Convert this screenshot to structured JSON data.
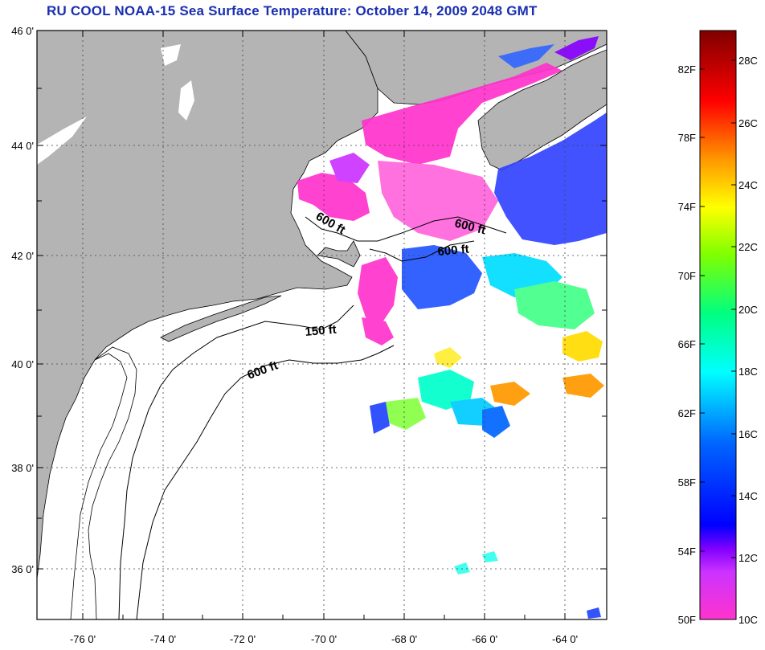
{
  "title": "RU COOL  NOAA-15  Sea Surface Temperature:  October 14, 2009 2048 GMT",
  "lat_labels": [
    "46 0'",
    "44 0'",
    "42 0'",
    "40 0'",
    "38 0'",
    "36 0'"
  ],
  "lon_labels": [
    "-76 0'",
    "-74 0'",
    "-72 0'",
    "-70 0'",
    "-68 0'",
    "-66 0'",
    "-64 0'"
  ],
  "contour_labels": [
    "600 ft",
    "600 ft",
    "600 ft",
    "150 ft",
    "600 ft"
  ],
  "colorbar": {
    "f_labels": [
      "82F",
      "78F",
      "74F",
      "70F",
      "66F",
      "62F",
      "58F",
      "54F",
      "50F"
    ],
    "c_labels": [
      "28C",
      "26C",
      "24C",
      "22C",
      "20C",
      "18C",
      "16C",
      "14C",
      "12C",
      "10C"
    ],
    "colors": [
      "#800000",
      "#ff0000",
      "#ff8000",
      "#ffff00",
      "#80ff00",
      "#00ff80",
      "#00ffff",
      "#0080ff",
      "#0000ff",
      "#8000ff",
      "#ff00ff"
    ]
  },
  "colors": {
    "land": "#b4b4b4",
    "ocean": "#ffffff",
    "title": "#1a2fb0",
    "grid": "#000000"
  }
}
